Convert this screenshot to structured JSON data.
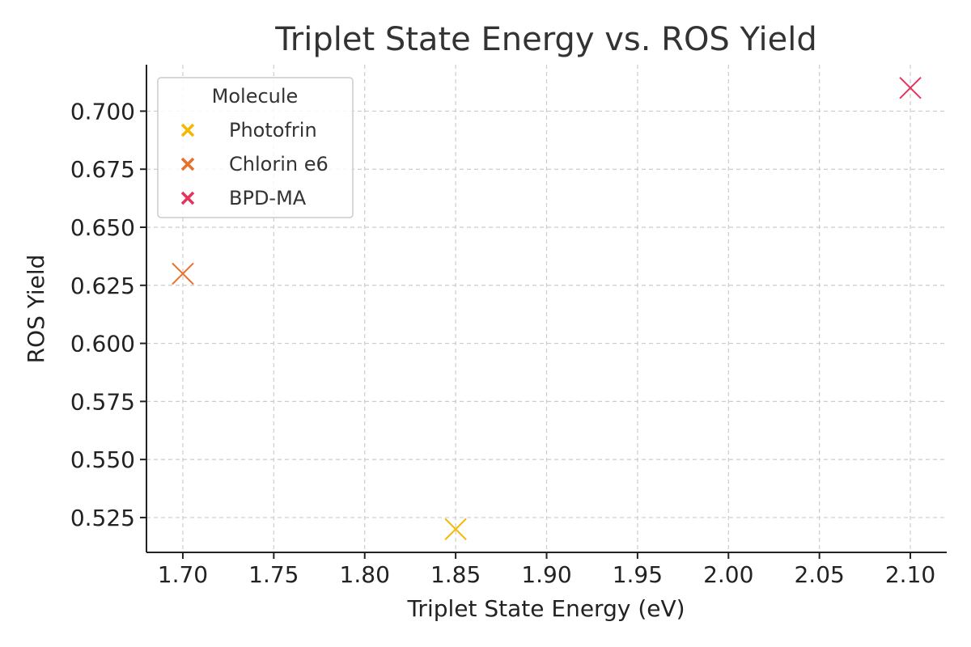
{
  "chart_data": {
    "type": "scatter",
    "title": "Triplet State Energy vs. ROS Yield",
    "xlabel": "Triplet State Energy (eV)",
    "ylabel": "ROS Yield",
    "xlim": [
      1.68,
      2.12
    ],
    "ylim": [
      0.51,
      0.72
    ],
    "xticks": [
      1.7,
      1.75,
      1.8,
      1.85,
      1.9,
      1.95,
      2.0,
      2.05,
      2.1
    ],
    "xtick_labels": [
      "1.70",
      "1.75",
      "1.80",
      "1.85",
      "1.90",
      "1.95",
      "2.00",
      "2.05",
      "2.10"
    ],
    "yticks": [
      0.525,
      0.55,
      0.575,
      0.6,
      0.625,
      0.65,
      0.675,
      0.7
    ],
    "ytick_labels": [
      "0.525",
      "0.550",
      "0.575",
      "0.600",
      "0.625",
      "0.650",
      "0.675",
      "0.700"
    ],
    "grid": true,
    "marker": "x",
    "legend": {
      "title": "Molecule",
      "placement": "top-left"
    },
    "series": [
      {
        "name": "Photofrin",
        "color": "#f5b700",
        "x": [
          1.85
        ],
        "y": [
          0.52
        ]
      },
      {
        "name": "Chlorin e6",
        "color": "#e8702a",
        "x": [
          1.7
        ],
        "y": [
          0.63
        ]
      },
      {
        "name": "BPD-MA",
        "color": "#e6335c",
        "x": [
          2.1
        ],
        "y": [
          0.71
        ]
      }
    ]
  }
}
